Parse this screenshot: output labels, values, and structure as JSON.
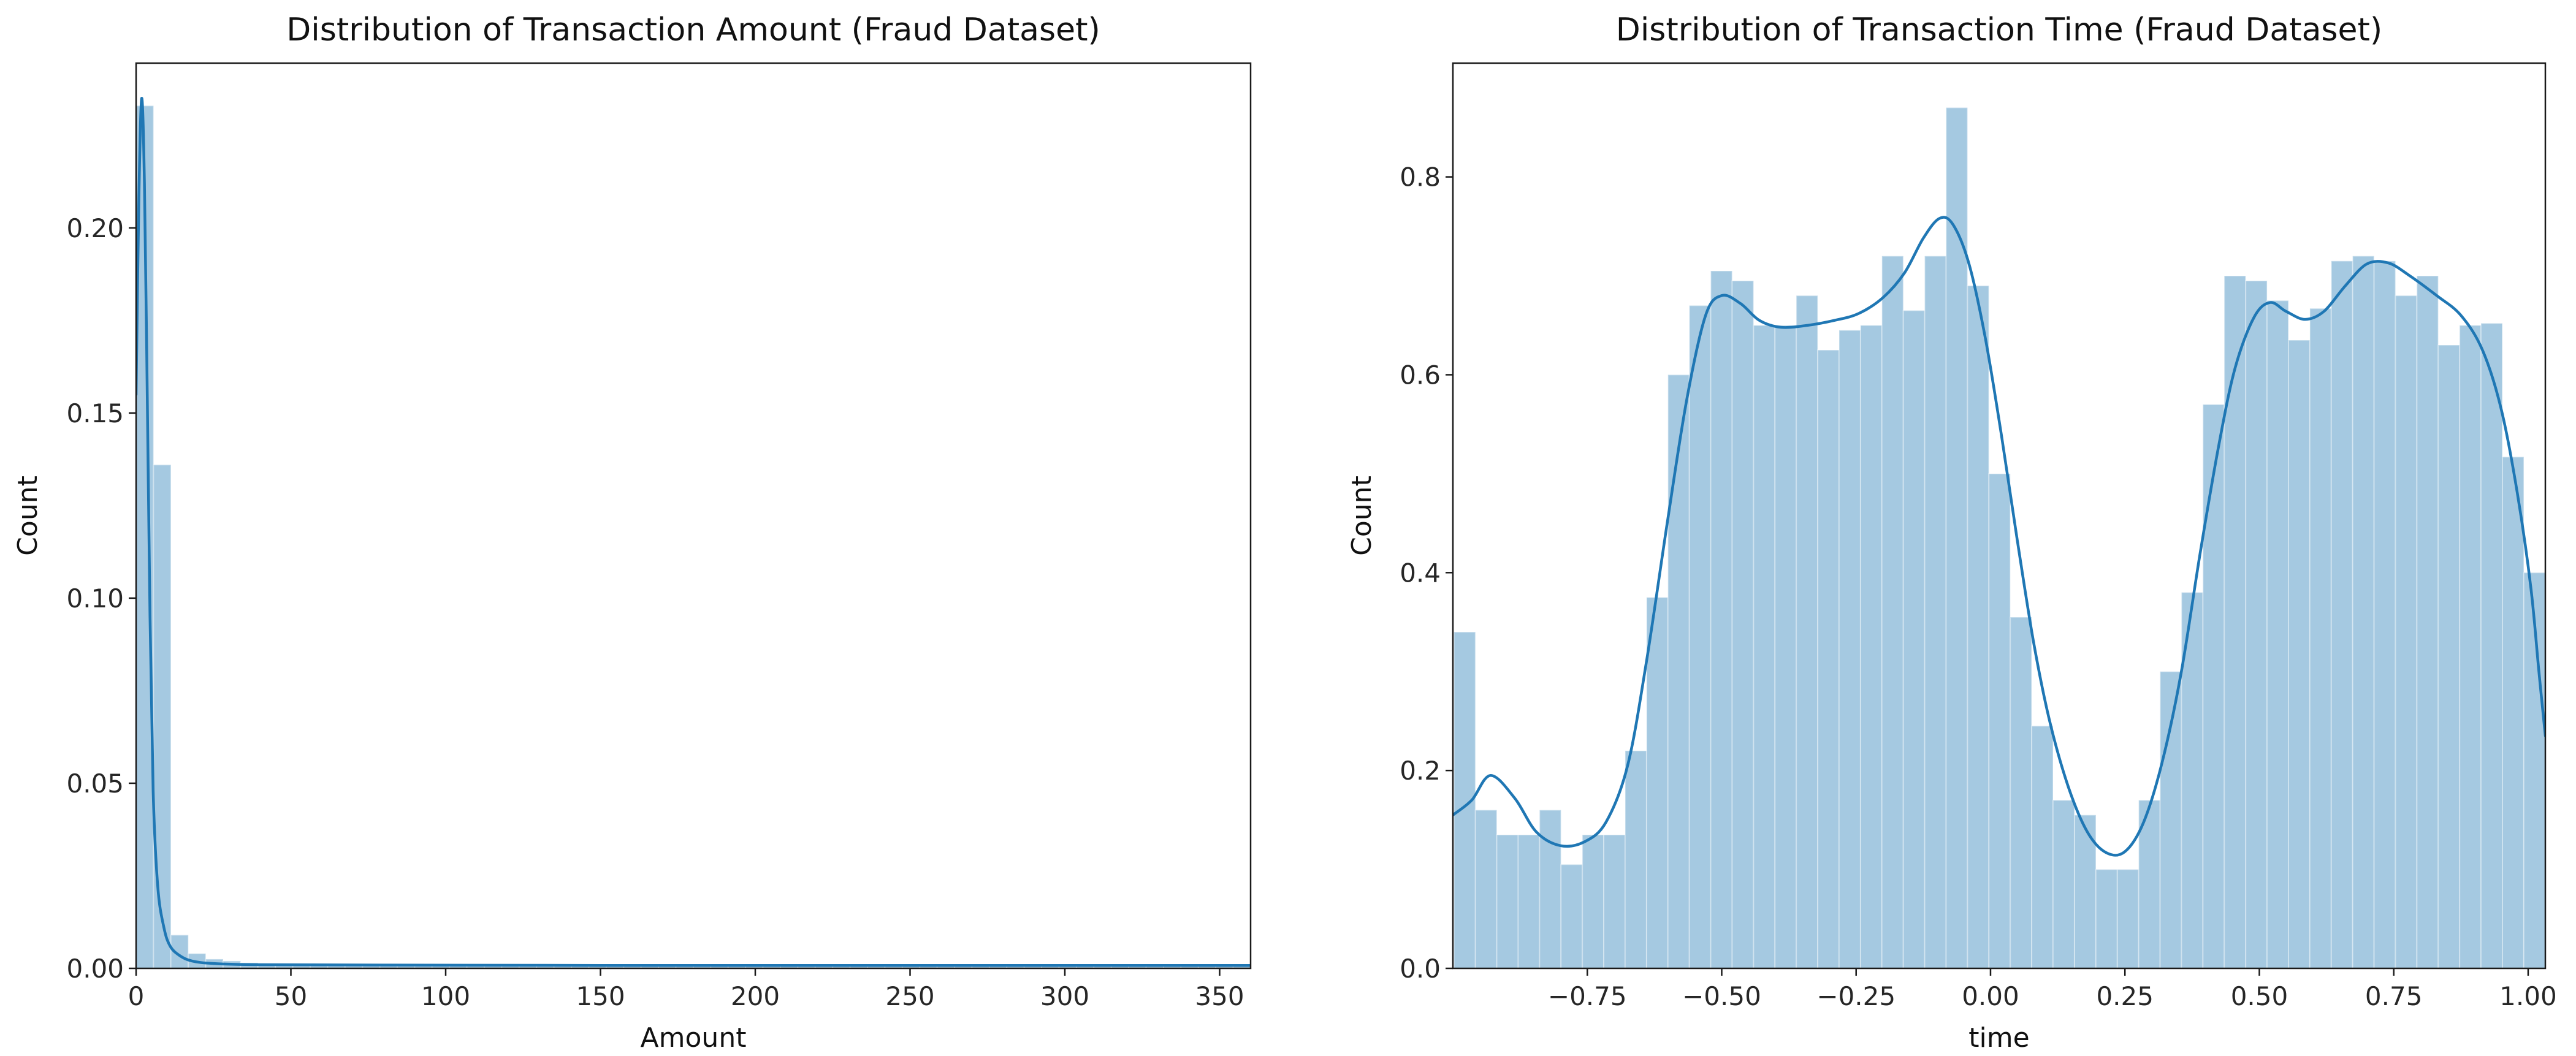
{
  "figure": {
    "background": "#ffffff",
    "colors": {
      "hist_fill": "#a5c9e1",
      "hist_edge_seam": "rgba(255,255,255,0.35)",
      "kde_line": "#1f77b4",
      "spine": "#1a1a1a",
      "tick_label": "#262626",
      "title_color": "#111111"
    }
  },
  "chart_data": [
    {
      "type": "bar",
      "subtype": "histogram-with-kde",
      "title": "Distribution of Transaction Amount (Fraud Dataset)",
      "xlabel": "Amount",
      "ylabel": "Count",
      "xlim": [
        0,
        360
      ],
      "ylim": [
        0,
        0.2445
      ],
      "grid": false,
      "legend": "none",
      "xticks": [
        0,
        50,
        100,
        150,
        200,
        250,
        300,
        350
      ],
      "xtick_labels": [
        "0",
        "50",
        "100",
        "150",
        "200",
        "250",
        "300",
        "350"
      ],
      "yticks": [
        0.0,
        0.05,
        0.1,
        0.15,
        0.2
      ],
      "ytick_labels": [
        "0.00",
        "0.05",
        "0.10",
        "0.15",
        "0.20"
      ],
      "bin_start": 0,
      "bin_width": 5.625,
      "bar_heights": [
        0.233,
        0.136,
        0.009,
        0.004,
        0.0025,
        0.002,
        0.0015,
        0.0012,
        0.001,
        0.001,
        0.001,
        0.001,
        0.0008,
        0.0008,
        0.0008,
        0.0008,
        0.0008,
        0.0008,
        0.0008,
        0.0008,
        0.0008,
        0.0008,
        0.0008,
        0.0008,
        0.0008,
        0.0008,
        0.0008,
        0.0008,
        0.0008,
        0.0008,
        0.0008,
        0.0008,
        0.0008,
        0.0008,
        0.0008,
        0.0008,
        0.0008,
        0.0008,
        0.0008,
        0.0008,
        0.0008,
        0.0008,
        0.0008,
        0.0008,
        0.0008,
        0.0008,
        0.0008,
        0.0008,
        0.0008,
        0.0008,
        0.0008,
        0.0008,
        0.0008,
        0.0008,
        0.0008,
        0.0008,
        0.0008,
        0.0008,
        0.0008,
        0.0008,
        0.0008,
        0.0008,
        0.0008,
        0.0008
      ],
      "kde_points": [
        [
          0,
          0.155
        ],
        [
          0.9,
          0.208
        ],
        [
          1.8,
          0.235
        ],
        [
          2.7,
          0.212
        ],
        [
          3.6,
          0.155
        ],
        [
          4.5,
          0.095
        ],
        [
          5.5,
          0.048
        ],
        [
          7,
          0.022
        ],
        [
          9,
          0.011
        ],
        [
          11,
          0.006
        ],
        [
          14,
          0.0035
        ],
        [
          18,
          0.002
        ],
        [
          25,
          0.0013
        ],
        [
          40,
          0.001
        ],
        [
          80,
          0.0009
        ],
        [
          150,
          0.0008
        ],
        [
          250,
          0.0008
        ],
        [
          360,
          0.0008
        ]
      ]
    },
    {
      "type": "bar",
      "subtype": "histogram-with-kde",
      "title": "Distribution of Transaction Time (Fraud Dataset)",
      "xlabel": "time",
      "ylabel": "Count",
      "xlim": [
        -1.0,
        1.032
      ],
      "ylim": [
        0,
        0.915
      ],
      "grid": false,
      "legend": "none",
      "xticks": [
        -0.75,
        -0.5,
        -0.25,
        0.0,
        0.25,
        0.5,
        0.75,
        1.0
      ],
      "xtick_labels": [
        "−0.75",
        "−0.50",
        "−0.25",
        "0.00",
        "0.25",
        "0.50",
        "0.75",
        "1.00"
      ],
      "yticks": [
        0.0,
        0.2,
        0.4,
        0.6,
        0.8
      ],
      "ytick_labels": [
        "0.0",
        "0.2",
        "0.4",
        "0.6",
        "0.8"
      ],
      "bin_start": -0.998,
      "bin_width": 0.0398,
      "bar_heights": [
        0.34,
        0.16,
        0.135,
        0.135,
        0.16,
        0.105,
        0.135,
        0.135,
        0.22,
        0.375,
        0.6,
        0.67,
        0.705,
        0.695,
        0.65,
        0.65,
        0.68,
        0.625,
        0.645,
        0.65,
        0.72,
        0.665,
        0.72,
        0.87,
        0.69,
        0.5,
        0.355,
        0.245,
        0.17,
        0.155,
        0.1,
        0.1,
        0.17,
        0.3,
        0.38,
        0.57,
        0.7,
        0.695,
        0.675,
        0.635,
        0.667,
        0.715,
        0.72,
        0.715,
        0.68,
        0.7,
        0.63,
        0.65,
        0.652,
        0.517,
        0.4
      ],
      "kde_points": [
        [
          -1.0,
          0.155
        ],
        [
          -0.965,
          0.17
        ],
        [
          -0.93,
          0.195
        ],
        [
          -0.885,
          0.172
        ],
        [
          -0.845,
          0.138
        ],
        [
          -0.8,
          0.124
        ],
        [
          -0.755,
          0.128
        ],
        [
          -0.715,
          0.148
        ],
        [
          -0.675,
          0.205
        ],
        [
          -0.64,
          0.31
        ],
        [
          -0.6,
          0.455
        ],
        [
          -0.565,
          0.575
        ],
        [
          -0.53,
          0.66
        ],
        [
          -0.5,
          0.68
        ],
        [
          -0.465,
          0.672
        ],
        [
          -0.43,
          0.655
        ],
        [
          -0.39,
          0.648
        ],
        [
          -0.34,
          0.65
        ],
        [
          -0.29,
          0.655
        ],
        [
          -0.245,
          0.662
        ],
        [
          -0.2,
          0.678
        ],
        [
          -0.16,
          0.703
        ],
        [
          -0.125,
          0.738
        ],
        [
          -0.095,
          0.758
        ],
        [
          -0.07,
          0.752
        ],
        [
          -0.04,
          0.712
        ],
        [
          -0.01,
          0.638
        ],
        [
          0.02,
          0.54
        ],
        [
          0.05,
          0.432
        ],
        [
          0.08,
          0.33
        ],
        [
          0.11,
          0.25
        ],
        [
          0.145,
          0.183
        ],
        [
          0.18,
          0.138
        ],
        [
          0.215,
          0.117
        ],
        [
          0.25,
          0.118
        ],
        [
          0.285,
          0.148
        ],
        [
          0.32,
          0.21
        ],
        [
          0.355,
          0.3
        ],
        [
          0.39,
          0.42
        ],
        [
          0.425,
          0.53
        ],
        [
          0.455,
          0.607
        ],
        [
          0.49,
          0.658
        ],
        [
          0.52,
          0.673
        ],
        [
          0.55,
          0.664
        ],
        [
          0.585,
          0.656
        ],
        [
          0.62,
          0.664
        ],
        [
          0.66,
          0.69
        ],
        [
          0.7,
          0.712
        ],
        [
          0.74,
          0.713
        ],
        [
          0.78,
          0.7
        ],
        [
          0.83,
          0.68
        ],
        [
          0.875,
          0.66
        ],
        [
          0.915,
          0.625
        ],
        [
          0.95,
          0.565
        ],
        [
          0.98,
          0.48
        ],
        [
          1.005,
          0.385
        ],
        [
          1.02,
          0.3
        ],
        [
          1.032,
          0.235
        ]
      ]
    }
  ]
}
